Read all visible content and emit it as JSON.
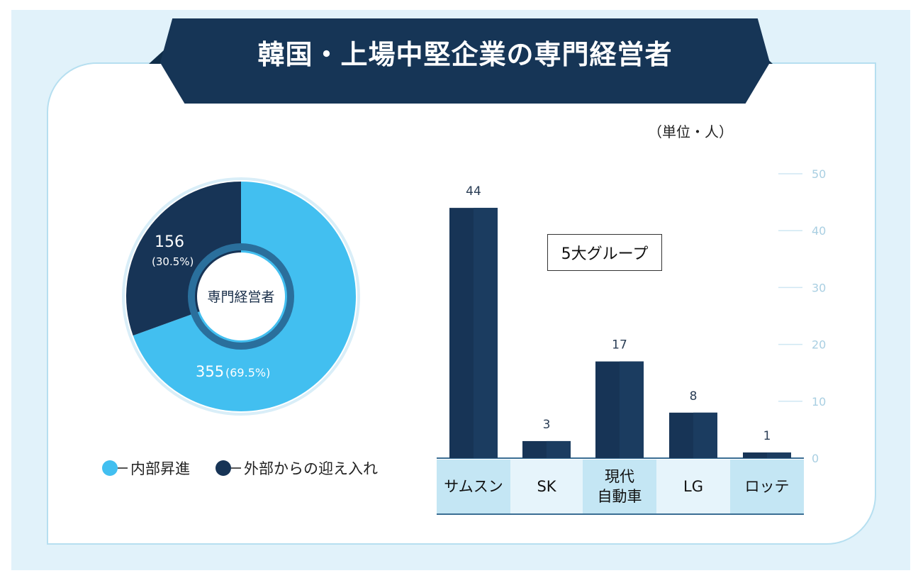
{
  "header": {
    "title": "韓国・上場中堅企業の専門経営者"
  },
  "unit_label": "（単位・人）",
  "donut": {
    "center_label": "専門経営者",
    "slices": [
      {
        "label": "内部昇進",
        "value": 355,
        "percent": "(69.5%)",
        "color": "#42bff0"
      },
      {
        "label": "外部からの迎え入れ",
        "value": 156,
        "percent": "(30.5%)",
        "color": "#173456"
      }
    ]
  },
  "legend": {
    "internal": "内部昇進",
    "external": "外部からの迎え入れ"
  },
  "bar_note": "5大グループ",
  "colors": {
    "bar": "#173456",
    "banner": "#163556",
    "accent": "#42bff0",
    "axis_text": "#a9cfe2"
  },
  "chart_data": [
    {
      "type": "pie",
      "categories": [
        "内部昇進",
        "外部からの迎え入れ"
      ],
      "values": [
        355,
        156
      ],
      "percentages": [
        69.5,
        30.5
      ],
      "title": "専門経営者"
    },
    {
      "type": "bar",
      "categories": [
        "サムスン",
        "SK",
        "現代\n自動車",
        "LG",
        "ロッテ"
      ],
      "values": [
        44,
        3,
        17,
        8,
        1
      ],
      "ylim": [
        0,
        50
      ],
      "yticks": [
        0,
        10,
        20,
        30,
        40,
        50
      ],
      "axis_side": "right",
      "ylabel": "（単位・人）"
    }
  ]
}
